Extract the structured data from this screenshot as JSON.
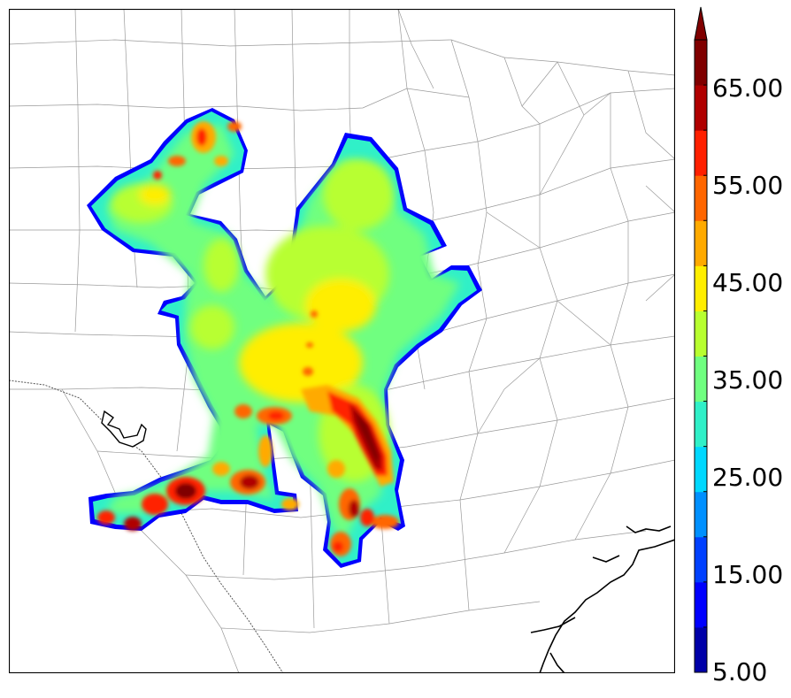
{
  "map": {
    "background": "#ffffff",
    "county_line_color": "#9a9a9a",
    "coast_color": "#000000"
  },
  "colorbar": {
    "tick_labels": [
      "5.00",
      "15.00",
      "25.00",
      "35.00",
      "45.00",
      "55.00",
      "65.00"
    ],
    "levels": [
      5,
      10,
      15,
      20,
      25,
      30,
      35,
      40,
      45,
      50,
      55,
      60,
      65,
      70
    ],
    "colors": [
      "#0000a8",
      "#0000ff",
      "#0040ff",
      "#0090ff",
      "#00d8ff",
      "#30f0c8",
      "#70ff80",
      "#b8ff30",
      "#ffee00",
      "#ffaa00",
      "#ff6600",
      "#ff2000",
      "#b00000",
      "#800000"
    ],
    "extend": "max"
  }
}
